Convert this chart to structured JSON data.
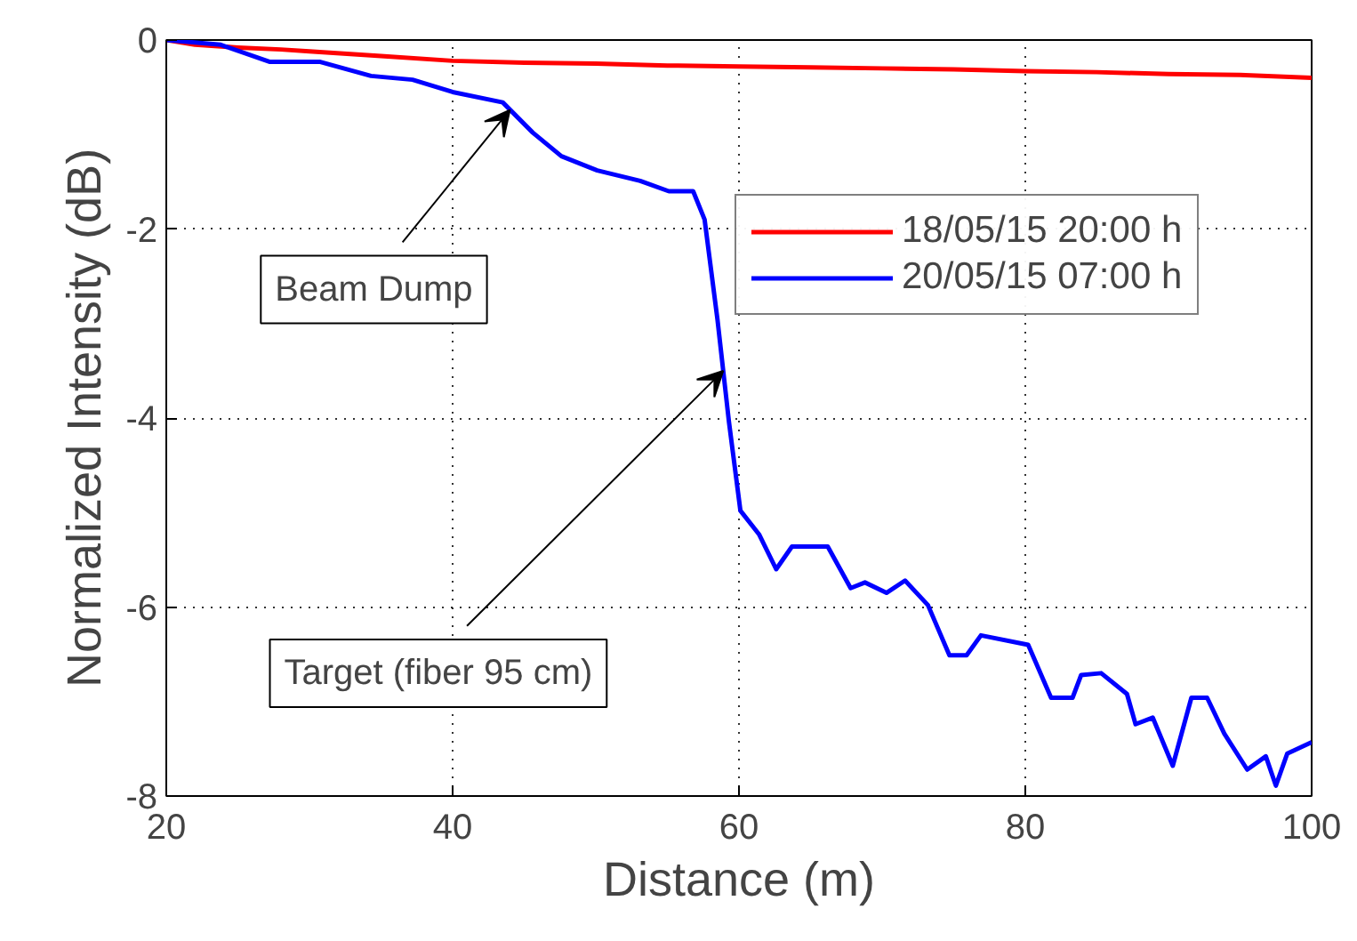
{
  "chart_data": {
    "type": "line",
    "xlabel": "Distance (m)",
    "ylabel": "Normalized Intensity (dB)",
    "xlim": [
      20,
      100
    ],
    "ylim": [
      -8,
      0
    ],
    "xticks": [
      20,
      40,
      60,
      80,
      100
    ],
    "yticks": [
      -8,
      -6,
      -4,
      -2,
      0
    ],
    "grid": true,
    "legend": "top right",
    "line_style": "solid",
    "annotations": [
      {
        "text": "Beam Dump",
        "x": 44,
        "y": -0.74
      },
      {
        "text": "Target (fiber 95 cm)",
        "x": 58.9,
        "y": -3.5
      }
    ],
    "series": [
      {
        "name": "18/05/15 20:00 h",
        "color": "#ff0000",
        "x": [
          20,
          22,
          25,
          28,
          30,
          35,
          40,
          45,
          50,
          55,
          60,
          65,
          70,
          75,
          80,
          85,
          90,
          95,
          100
        ],
        "values": [
          0,
          -0.05,
          -0.08,
          -0.1,
          -0.12,
          -0.17,
          -0.22,
          -0.24,
          -0.25,
          -0.27,
          -0.28,
          -0.29,
          -0.3,
          -0.31,
          -0.33,
          -0.34,
          -0.36,
          -0.37,
          -0.4
        ]
      },
      {
        "name": "20/05/15 07:00 h",
        "color": "#0000ff",
        "x": [
          20,
          23.8,
          27.2,
          30.7,
          34.3,
          37.2,
          40,
          43.5,
          45.6,
          47.6,
          50.1,
          53.1,
          55.1,
          56.8,
          57.6,
          58.5,
          59.3,
          60.1,
          61.4,
          62.6,
          63.7,
          66.2,
          67.8,
          68.8,
          70.3,
          71.6,
          73.2,
          74.7,
          75.9,
          76.9,
          80.2,
          81.8,
          83.3,
          83.9,
          85.3,
          87.1,
          87.7,
          88.9,
          90.3,
          91.6,
          92.7,
          93.9,
          95.5,
          96.8,
          97.5,
          98.3,
          100
        ],
        "values": [
          0,
          -0.05,
          -0.23,
          -0.23,
          -0.38,
          -0.42,
          -0.55,
          -0.66,
          -0.98,
          -1.23,
          -1.38,
          -1.49,
          -1.6,
          -1.6,
          -1.9,
          -2.96,
          -4.04,
          -4.98,
          -5.23,
          -5.6,
          -5.36,
          -5.36,
          -5.8,
          -5.74,
          -5.85,
          -5.72,
          -5.98,
          -6.51,
          -6.51,
          -6.3,
          -6.4,
          -6.96,
          -6.96,
          -6.72,
          -6.7,
          -6.92,
          -7.24,
          -7.17,
          -7.68,
          -6.96,
          -6.96,
          -7.34,
          -7.72,
          -7.58,
          -7.89,
          -7.55,
          -7.43
        ]
      }
    ]
  }
}
